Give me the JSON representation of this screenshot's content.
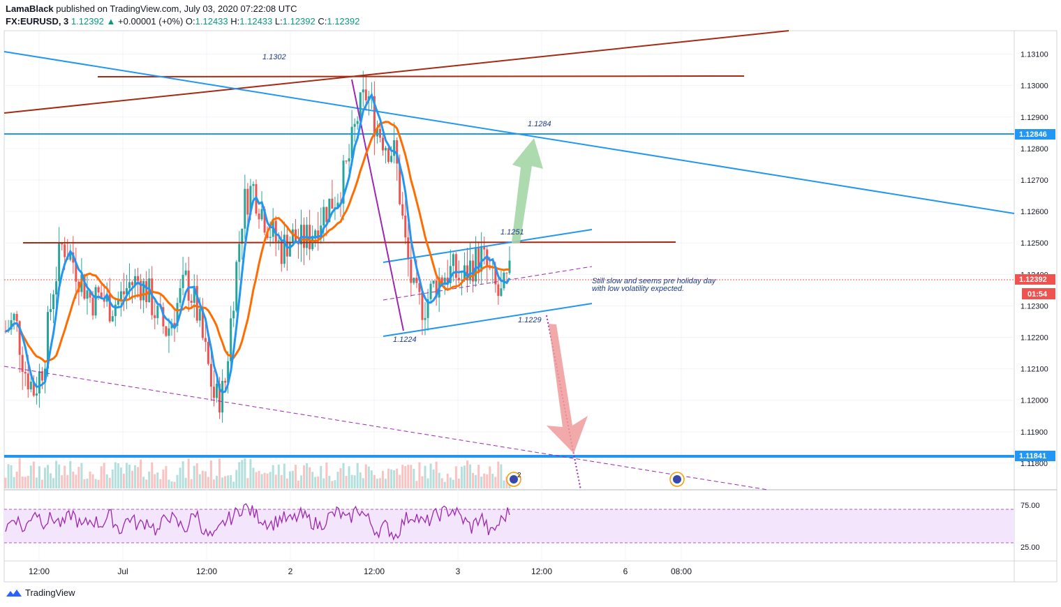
{
  "header": {
    "author": "LamaBlack",
    "published_text": "published on TradingView.com, July 03, 2020 07:22:08 UTC",
    "symbol": "FX:EURUSD, 3",
    "last": "1.12392",
    "change": "+0.00001 (+0%)",
    "o_label": "O:",
    "o_value": "1.12433",
    "h_label": "H:",
    "h_value": "1.12433",
    "l_label": "L:",
    "l_value": "1.12392",
    "c_label": "C:",
    "c_value": "1.12392"
  },
  "footer": {
    "brand": "TradingView"
  },
  "colors": {
    "blue_line": "#2196f3",
    "brown_line": "#a52a12",
    "orange_ma": "#ff6d00",
    "blue_ma": "#2196f3",
    "up": "#26a69a",
    "down": "#ef5350",
    "rsi": "#9c27b0",
    "rsi_band": "#f3e5fc",
    "green_arrow": "#a5d6a7",
    "red_arrow": "#ef9a9a"
  },
  "chart_data": [
    {
      "type": "candlestick",
      "title": "",
      "ylim": [
        1.1172,
        1.1317
      ],
      "y_ticks": [
        "1.13100",
        "1.13000",
        "1.12900",
        "1.12800",
        "1.12700",
        "1.12600",
        "1.12500",
        "1.12400",
        "1.12300",
        "1.12200",
        "1.12100",
        "1.12000",
        "1.11900",
        "1.11800"
      ],
      "x_ticks": [
        "12:00",
        "Jul",
        "12:00",
        "2",
        "12:00",
        "3",
        "12:00",
        "6",
        "08:00"
      ],
      "price_close_path": [
        1.1222,
        1.1226,
        1.121,
        1.1203,
        1.1212,
        1.1236,
        1.125,
        1.1245,
        1.1238,
        1.1232,
        1.1233,
        1.123,
        1.1232,
        1.1237,
        1.1238,
        1.1234,
        1.1226,
        1.1222,
        1.123,
        1.1238,
        1.123,
        1.1215,
        1.12,
        1.1203,
        1.1235,
        1.1262,
        1.1268,
        1.126,
        1.1253,
        1.1248,
        1.1252,
        1.125,
        1.1252,
        1.1258,
        1.1262,
        1.1266,
        1.1275,
        1.129,
        1.1298,
        1.1287,
        1.1282,
        1.1278,
        1.125,
        1.1232,
        1.123,
        1.1236,
        1.124,
        1.1241,
        1.1238,
        1.1243,
        1.1246,
        1.1239,
        1.1232,
        1.1239
      ],
      "price_labels": [
        {
          "value": "1.12846",
          "color": "#2196f3"
        },
        {
          "value": "1.12392",
          "color": "#ef5350"
        },
        {
          "value": "01:54",
          "color": "#ef5350"
        },
        {
          "value": "1.11841",
          "color": "#2196f3"
        }
      ],
      "annotations": [
        "1.1302",
        "1.1284",
        "1.1251",
        "1.1229",
        "1.1224",
        "Still slow and seems pre holiday day",
        "with low volatility expected."
      ],
      "horizontal_levels": [
        1.12846,
        1.11841
      ],
      "moving_averages": [
        "orange",
        "blue"
      ]
    },
    {
      "type": "line",
      "title": "",
      "series": [
        {
          "name": "",
          "values": [
            47,
            62,
            44,
            70,
            55,
            60,
            51,
            66,
            48,
            58,
            52,
            63,
            45,
            61,
            50,
            57,
            42,
            65,
            53,
            47,
            68,
            40,
            36,
            55,
            62,
            74,
            66,
            58,
            52,
            60,
            56,
            63,
            57,
            50,
            61,
            67,
            55,
            72,
            60,
            44,
            50,
            38,
            58,
            64,
            52,
            61,
            66,
            70,
            59,
            48,
            62,
            40,
            55,
            68
          ]
        }
      ],
      "ylim": [
        10,
        90
      ],
      "y_ticks": [
        "75.00",
        "25.00"
      ],
      "bands": [
        70,
        30
      ]
    }
  ]
}
